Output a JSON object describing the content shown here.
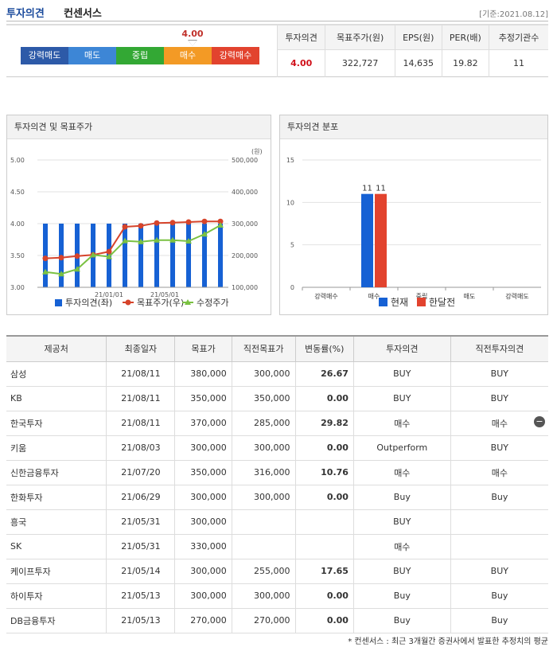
{
  "header": {
    "title": "투자의견",
    "subtitle": "컨센서스",
    "date": "[기준:2021.08.12]"
  },
  "gauge": {
    "labels": [
      "강력매도",
      "매도",
      "중립",
      "매수",
      "강력매수"
    ],
    "marker": "4.00"
  },
  "summary": {
    "headers": [
      "투자의견",
      "목표주가(원)",
      "EPS(원)",
      "PER(배)",
      "추정기관수"
    ],
    "values": [
      "4.00",
      "322,727",
      "14,635",
      "19.82",
      "11"
    ]
  },
  "panel1": {
    "title": "투자의견 및 목표주가"
  },
  "panel2": {
    "title": "투자의견 분포"
  },
  "chart_data": [
    {
      "type": "bar+line",
      "title": "투자의견 및 목표주가",
      "y_left": {
        "ticks": [
          "5.00",
          "4.50",
          "4.00",
          "3.50",
          "3.00"
        ],
        "ylim": [
          3.0,
          5.0
        ]
      },
      "y_right": {
        "unit": "(원)",
        "ticks": [
          "500,000",
          "400,000",
          "300,000",
          "200,000",
          "100,000"
        ],
        "ylim": [
          100000,
          500000
        ]
      },
      "x_ticks": [
        "21/01/01",
        "21/05/01"
      ],
      "bars": [
        4.0,
        4.0,
        4.0,
        4.0,
        4.0,
        4.0,
        4.0,
        4.0,
        4.0,
        4.0,
        4.0,
        4.0
      ],
      "target_price": [
        191000,
        193000,
        198000,
        202000,
        212000,
        290000,
        293000,
        302000,
        303000,
        305000,
        307000,
        307000
      ],
      "adj_price": [
        148000,
        142000,
        157000,
        202000,
        196000,
        246000,
        243000,
        248000,
        248000,
        245000,
        267000,
        295000
      ],
      "legend": [
        "투자의견(좌)",
        "목표주가(우)",
        "수정주가"
      ],
      "colors": {
        "bar": "#1661d4",
        "target": "#d6442b",
        "adj": "#7ac142"
      }
    },
    {
      "type": "bar",
      "title": "투자의견 분포",
      "categories": [
        "강력매수",
        "매수",
        "중립",
        "매도",
        "강력매도"
      ],
      "series": [
        {
          "name": "현재",
          "values": [
            0,
            11,
            0,
            0,
            0
          ],
          "color": "#1661d4"
        },
        {
          "name": "한달전",
          "values": [
            0,
            11,
            0,
            0,
            0
          ],
          "color": "#e2432e"
        }
      ],
      "ylim": [
        0,
        15
      ],
      "y_ticks": [
        "15",
        "10",
        "5",
        "0"
      ],
      "data_labels": [
        "11",
        "11"
      ]
    }
  ],
  "table": {
    "headers": [
      "제공처",
      "최종일자",
      "목표가",
      "직전목표가",
      "변동률(%)",
      "투자의견",
      "직전투자의견"
    ],
    "rows": [
      [
        "삼성",
        "21/08/11",
        "380,000",
        "300,000",
        "26.67",
        "BUY",
        "BUY"
      ],
      [
        "KB",
        "21/08/11",
        "350,000",
        "350,000",
        "0.00",
        "BUY",
        "BUY"
      ],
      [
        "한국투자",
        "21/08/11",
        "370,000",
        "285,000",
        "29.82",
        "매수",
        "매수"
      ],
      [
        "키움",
        "21/08/03",
        "300,000",
        "300,000",
        "0.00",
        "Outperform",
        "BUY"
      ],
      [
        "신한금융투자",
        "21/07/20",
        "350,000",
        "316,000",
        "10.76",
        "매수",
        "매수"
      ],
      [
        "한화투자",
        "21/06/29",
        "300,000",
        "300,000",
        "0.00",
        "Buy",
        "Buy"
      ],
      [
        "흥국",
        "21/05/31",
        "300,000",
        "",
        "",
        "BUY",
        ""
      ],
      [
        "SK",
        "21/05/31",
        "330,000",
        "",
        "",
        "매수",
        ""
      ],
      [
        "케이프투자",
        "21/05/14",
        "300,000",
        "255,000",
        "17.65",
        "BUY",
        "BUY"
      ],
      [
        "하이투자",
        "21/05/13",
        "300,000",
        "300,000",
        "0.00",
        "Buy",
        "Buy"
      ],
      [
        "DB금융투자",
        "21/05/13",
        "270,000",
        "270,000",
        "0.00",
        "Buy",
        "Buy"
      ]
    ]
  },
  "footnote": "* 컨센서스 : 최근 3개월간 증권사에서 발표한 추정치의 평균"
}
